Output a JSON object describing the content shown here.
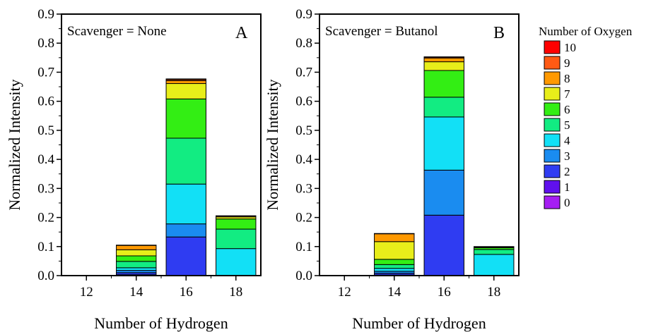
{
  "chart_data": [
    {
      "type": "bar",
      "stacked": true,
      "panel_letter": "A",
      "annotation": "Scavenger = None",
      "xlabel": "Number of Hydrogen",
      "ylabel": "Normalized Intensity",
      "categories": [
        "12",
        "14",
        "16",
        "18"
      ],
      "ylim": [
        0,
        0.9
      ],
      "yticks": [
        "0.0",
        "0.1",
        "0.2",
        "0.3",
        "0.4",
        "0.5",
        "0.6",
        "0.7",
        "0.8",
        "0.9"
      ],
      "xticks": [
        "12",
        "14",
        "16",
        "18"
      ],
      "grid": false,
      "series": [
        {
          "oxygen": "0",
          "values": [
            0,
            0,
            0,
            0
          ]
        },
        {
          "oxygen": "1",
          "values": [
            0,
            0.003,
            0,
            0
          ]
        },
        {
          "oxygen": "2",
          "values": [
            0,
            0.007,
            0.133,
            0
          ]
        },
        {
          "oxygen": "3",
          "values": [
            0,
            0.008,
            0.045,
            0
          ]
        },
        {
          "oxygen": "4",
          "values": [
            0,
            0.009,
            0.137,
            0.093
          ]
        },
        {
          "oxygen": "5",
          "values": [
            0,
            0.022,
            0.158,
            0.067
          ]
        },
        {
          "oxygen": "6",
          "values": [
            0,
            0.019,
            0.135,
            0.035
          ]
        },
        {
          "oxygen": "7",
          "values": [
            0,
            0.021,
            0.053,
            0.007
          ]
        },
        {
          "oxygen": "8",
          "values": [
            0,
            0.015,
            0.01,
            0.003
          ]
        },
        {
          "oxygen": "9",
          "values": [
            0,
            0.001,
            0.004,
            0.001
          ]
        },
        {
          "oxygen": "10",
          "values": [
            0,
            0,
            0.002,
            0
          ]
        }
      ]
    },
    {
      "type": "bar",
      "stacked": true,
      "panel_letter": "B",
      "annotation": "Scavenger = Butanol",
      "xlabel": "Number of Hydrogen",
      "ylabel": "Normalized Intensity",
      "categories": [
        "12",
        "14",
        "16",
        "18"
      ],
      "ylim": [
        0,
        0.9
      ],
      "yticks": [
        "0.0",
        "0.1",
        "0.2",
        "0.3",
        "0.4",
        "0.5",
        "0.6",
        "0.7",
        "0.8",
        "0.9"
      ],
      "xticks": [
        "12",
        "14",
        "16",
        "18"
      ],
      "grid": false,
      "series": [
        {
          "oxygen": "0",
          "values": [
            0,
            0,
            0,
            0
          ]
        },
        {
          "oxygen": "1",
          "values": [
            0,
            0.002,
            0,
            0
          ]
        },
        {
          "oxygen": "2",
          "values": [
            0,
            0.006,
            0.208,
            0
          ]
        },
        {
          "oxygen": "3",
          "values": [
            0,
            0.007,
            0.155,
            0
          ]
        },
        {
          "oxygen": "4",
          "values": [
            0,
            0.01,
            0.183,
            0.073
          ]
        },
        {
          "oxygen": "5",
          "values": [
            0,
            0.013,
            0.068,
            0.017
          ]
        },
        {
          "oxygen": "6",
          "values": [
            0,
            0.018,
            0.092,
            0.006
          ]
        },
        {
          "oxygen": "7",
          "values": [
            0,
            0.061,
            0.03,
            0.002
          ]
        },
        {
          "oxygen": "8",
          "values": [
            0,
            0.027,
            0.013,
            0.001
          ]
        },
        {
          "oxygen": "9",
          "values": [
            0,
            0.001,
            0.003,
            0.001
          ]
        },
        {
          "oxygen": "10",
          "values": [
            0,
            0,
            0.001,
            0
          ]
        }
      ]
    }
  ],
  "legend": {
    "title": "Number of Oxygen",
    "placement": "right",
    "items": [
      {
        "label": "10",
        "color": "#ff0000"
      },
      {
        "label": "9",
        "color": "#ff5a14"
      },
      {
        "label": "8",
        "color": "#ff9900"
      },
      {
        "label": "7",
        "color": "#e8ee1a"
      },
      {
        "label": "6",
        "color": "#33ee14"
      },
      {
        "label": "5",
        "color": "#12ec82"
      },
      {
        "label": "4",
        "color": "#12e0f6"
      },
      {
        "label": "3",
        "color": "#1a8cf0"
      },
      {
        "label": "2",
        "color": "#2f3cf2"
      },
      {
        "label": "1",
        "color": "#6010ee"
      },
      {
        "label": "0",
        "color": "#a61ef3"
      }
    ]
  }
}
